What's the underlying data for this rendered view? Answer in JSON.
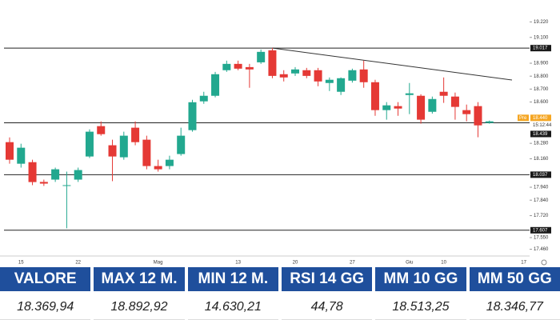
{
  "chart_data": {
    "type": "candlestick",
    "categories": [
      null,
      "15",
      null,
      null,
      null,
      null,
      "22",
      null,
      null,
      null,
      null,
      null,
      null,
      "Mag",
      null,
      null,
      null,
      null,
      null,
      null,
      "13",
      null,
      null,
      null,
      null,
      "20",
      null,
      null,
      null,
      null,
      "27",
      null,
      null,
      null,
      null,
      "Giu",
      null,
      null,
      "10",
      null,
      null,
      null,
      null,
      null,
      null,
      "17"
    ],
    "open": [
      18289,
      18122,
      18134,
      17981,
      17999,
      17950,
      17999,
      18178,
      18413,
      18265,
      18172,
      18401,
      18308,
      18104,
      18104,
      18197,
      18382,
      18605,
      18648,
      18846,
      18895,
      18870,
      18907,
      19000,
      18815,
      18821,
      18846,
      18846,
      18747,
      18679,
      18765,
      18852,
      18753,
      18537,
      18568,
      18654,
      18648,
      18524,
      18679,
      18642,
      18537,
      18568,
      18438,
      null,
      null,
      null
    ],
    "high": [
      18326,
      18277,
      18153,
      17999,
      18092,
      18061,
      18092,
      18388,
      18450,
      18308,
      18370,
      18450,
      18339,
      18153,
      18184,
      18401,
      18617,
      18679,
      18833,
      18920,
      18920,
      18895,
      19006,
      19019,
      18846,
      18870,
      18864,
      18864,
      18790,
      18790,
      18858,
      18920,
      18772,
      18599,
      18599,
      18747,
      18660,
      18642,
      18790,
      18673,
      18580,
      18599,
      18456,
      null,
      null,
      null
    ],
    "low": [
      18122,
      18092,
      17956,
      17950,
      17981,
      17622,
      17981,
      18166,
      18339,
      17987,
      18153,
      18265,
      18079,
      18061,
      18079,
      18184,
      18370,
      18586,
      18636,
      18833,
      18846,
      18710,
      18895,
      18784,
      18759,
      18802,
      18784,
      18722,
      18685,
      18654,
      18750,
      18710,
      18493,
      18463,
      18493,
      18506,
      18432,
      18510,
      18593,
      18463,
      18450,
      18327,
      18432,
      null,
      null,
      null
    ],
    "close": [
      18153,
      18246,
      17980,
      17968,
      18079,
      17956,
      18073,
      18370,
      18351,
      18178,
      18339,
      18289,
      18104,
      18079,
      18153,
      18339,
      18598,
      18648,
      18815,
      18895,
      18858,
      18852,
      18988,
      18802,
      18790,
      18852,
      18802,
      18759,
      18772,
      18784,
      18846,
      18753,
      18537,
      18574,
      18549,
      18667,
      18463,
      18623,
      18648,
      18562,
      18506,
      18419,
      18450,
      null,
      null,
      null
    ],
    "up_color": "#22a88f",
    "down_color": "#e53935",
    "ylim": [
      17420,
      19340
    ],
    "yticks": [
      {
        "value": 19220,
        "label": "19.220"
      },
      {
        "value": 19100,
        "label": "19.100"
      },
      {
        "value": 18900,
        "label": "18.900"
      },
      {
        "value": 18800,
        "label": "18.800"
      },
      {
        "value": 18700,
        "label": "18.700"
      },
      {
        "value": 18600,
        "label": "18.600"
      },
      {
        "value": 18280,
        "label": "18.280"
      },
      {
        "value": 18160,
        "label": "18.160"
      },
      {
        "value": 17940,
        "label": "17.940"
      },
      {
        "value": 17840,
        "label": "17.840"
      },
      {
        "value": 17720,
        "label": "17.720"
      },
      {
        "value": 17550,
        "label": "17.550"
      },
      {
        "value": 17460,
        "label": "17.460"
      }
    ],
    "levels": [
      {
        "value": 19017,
        "label": "19.017"
      },
      {
        "value": 18439,
        "label": "18.439"
      },
      {
        "value": 18037,
        "label": "18.037"
      },
      {
        "value": 17607,
        "label": "17.607"
      }
    ],
    "current": {
      "tag": "Pre",
      "value": 18440,
      "label": "18.440",
      "time": "15:12:44"
    }
  },
  "table": {
    "header": [
      "VALORE",
      "MAX 12 M.",
      "MIN 12 M.",
      "RSI 14 GG",
      "MM 10 GG",
      "MM 50 GG"
    ],
    "values": [
      "18.369,94",
      "18.892,92",
      "14.630,21",
      "44,78",
      "18.513,25",
      "18.346,77"
    ]
  }
}
